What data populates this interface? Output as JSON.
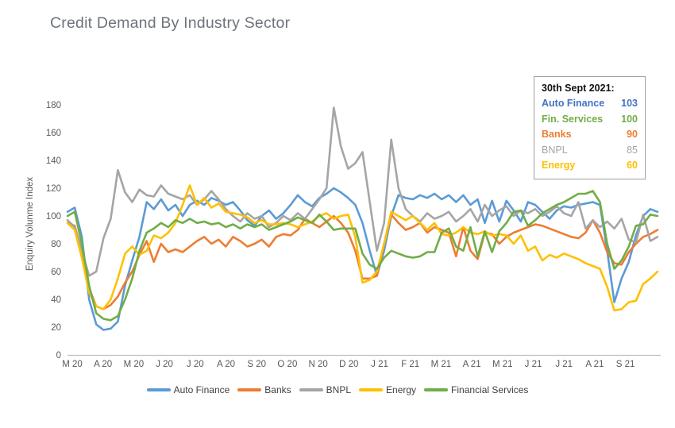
{
  "title": "Credit Demand By Industry Sector",
  "y_axis": {
    "label": "Enquiry Volunme Index",
    "ticks": [
      0,
      20,
      40,
      60,
      80,
      100,
      120,
      140,
      160,
      180
    ]
  },
  "x_axis": {
    "labels": [
      "M 20",
      "A 20",
      "M 20",
      "J 20",
      "J 20",
      "A 20",
      "S 20",
      "O 20",
      "N 20",
      "D 20",
      "J 21",
      "F 21",
      "M 21",
      "A 21",
      "M 21",
      "J 21",
      "J 21",
      "A 21",
      "S 21"
    ]
  },
  "annotation": {
    "title": "30th Sept 2021:",
    "rows": [
      {
        "label": "Auto Finance",
        "value": "103",
        "color": "#4472C4",
        "bold": true
      },
      {
        "label": "Fin. Services",
        "value": "100",
        "color": "#70AD47",
        "bold": true
      },
      {
        "label": "Banks",
        "value": "90",
        "color": "#ED7D31",
        "bold": true
      },
      {
        "label": "BNPL",
        "value": "85",
        "color": "#A5A5A5",
        "bold": false
      },
      {
        "label": "Energy",
        "value": "60",
        "color": "#FFC000",
        "bold": true
      }
    ]
  },
  "colors": {
    "axis_text": "#595959",
    "axis_line": "#c0c0c0",
    "title_text": "#6d737b",
    "legend_text": "#404040"
  },
  "chart_data": {
    "type": "line",
    "title": "Credit Demand By Industry Sector",
    "xlabel": "",
    "ylabel": "Enquiry Volunme Index",
    "ylim": [
      0,
      180
    ],
    "grid": false,
    "legend_position": "bottom",
    "x_unit": "weekly",
    "x_range": "Mar 2020 - 30 Sept 2021",
    "x_tick_labels": [
      "M 20",
      "A 20",
      "M 20",
      "J 20",
      "J 20",
      "A 20",
      "S 20",
      "O 20",
      "N 20",
      "D 20",
      "J 21",
      "F 21",
      "M 21",
      "A 21",
      "M 21",
      "J 21",
      "J 21",
      "A 21",
      "S 21"
    ],
    "series": [
      {
        "name": "Auto Finance",
        "color": "#5B9BD5",
        "values": [
          103,
          106,
          85,
          40,
          22,
          18,
          19,
          24,
          50,
          68,
          85,
          110,
          105,
          112,
          104,
          108,
          100,
          108,
          111,
          108,
          113,
          111,
          108,
          110,
          104,
          97,
          93,
          100,
          104,
          98,
          102,
          108,
          115,
          110,
          107,
          113,
          116,
          120,
          117,
          113,
          108,
          95,
          75,
          57,
          75,
          100,
          115,
          113,
          112,
          115,
          113,
          116,
          112,
          115,
          110,
          115,
          108,
          112,
          95,
          111,
          96,
          111,
          104,
          96,
          110,
          108,
          103,
          98,
          104,
          107,
          106,
          108,
          109,
          110,
          108,
          75,
          38,
          55,
          67,
          86,
          100,
          105,
          103
        ]
      },
      {
        "name": "Banks",
        "color": "#ED7D31",
        "values": [
          95,
          93,
          75,
          48,
          35,
          33,
          36,
          42,
          52,
          60,
          72,
          82,
          67,
          80,
          74,
          76,
          74,
          78,
          82,
          85,
          80,
          83,
          78,
          85,
          82,
          78,
          80,
          83,
          78,
          85,
          87,
          86,
          90,
          98,
          95,
          92,
          96,
          100,
          95,
          88,
          75,
          55,
          55,
          57,
          80,
          101,
          95,
          90,
          92,
          95,
          88,
          92,
          90,
          88,
          71,
          92,
          75,
          69,
          88,
          87,
          80,
          85,
          88,
          90,
          92,
          94,
          93,
          91,
          89,
          87,
          85,
          84,
          88,
          97,
          88,
          74,
          66,
          65,
          74,
          80,
          85,
          87,
          90
        ]
      },
      {
        "name": "BNPL",
        "color": "#A5A5A5",
        "values": [
          97,
          92,
          75,
          57,
          60,
          84,
          98,
          133,
          117,
          110,
          119,
          115,
          114,
          122,
          116,
          114,
          112,
          115,
          108,
          112,
          118,
          112,
          105,
          100,
          96,
          102,
          98,
          100,
          92,
          95,
          100,
          97,
          102,
          98,
          105,
          112,
          120,
          178,
          150,
          134,
          138,
          146,
          110,
          75,
          95,
          155,
          120,
          105,
          100,
          96,
          102,
          98,
          100,
          103,
          96,
          100,
          105,
          96,
          108,
          100,
          104,
          107,
          100,
          104,
          102,
          105,
          100,
          103,
          107,
          102,
          100,
          110,
          91,
          97,
          92,
          96,
          91,
          98,
          83,
          81,
          101,
          82,
          85
        ]
      },
      {
        "name": "Energy",
        "color": "#FFC000",
        "values": [
          95,
          90,
          70,
          45,
          35,
          33,
          40,
          55,
          73,
          78,
          72,
          75,
          86,
          84,
          88,
          95,
          108,
          122,
          108,
          113,
          106,
          109,
          103,
          102,
          101,
          99,
          95,
          97,
          94,
          94,
          95,
          94,
          92,
          94,
          96,
          100,
          102,
          98,
          100,
          101,
          85,
          52,
          54,
          60,
          80,
          103,
          100,
          97,
          100,
          95,
          90,
          95,
          87,
          86,
          88,
          92,
          88,
          87,
          89,
          86,
          87,
          86,
          80,
          86,
          75,
          78,
          68,
          72,
          70,
          73,
          71,
          69,
          66,
          64,
          62,
          49,
          32,
          33,
          38,
          39,
          51,
          55,
          60
        ]
      },
      {
        "name": "Financial Services",
        "color": "#70AD47",
        "values": [
          100,
          103,
          80,
          50,
          30,
          26,
          25,
          28,
          40,
          55,
          75,
          88,
          91,
          95,
          92,
          97,
          95,
          98,
          95,
          96,
          94,
          95,
          92,
          94,
          91,
          94,
          92,
          94,
          90,
          92,
          94,
          96,
          99,
          97,
          95,
          101,
          96,
          90,
          91,
          91,
          91,
          73,
          65,
          62,
          70,
          75,
          73,
          71,
          70,
          71,
          74,
          74,
          88,
          91,
          78,
          75,
          92,
          71,
          89,
          74,
          89,
          95,
          103,
          104,
          93,
          97,
          102,
          105,
          108,
          110,
          113,
          116,
          116,
          118,
          110,
          80,
          62,
          68,
          78,
          93,
          94,
          101,
          100
        ]
      }
    ]
  }
}
